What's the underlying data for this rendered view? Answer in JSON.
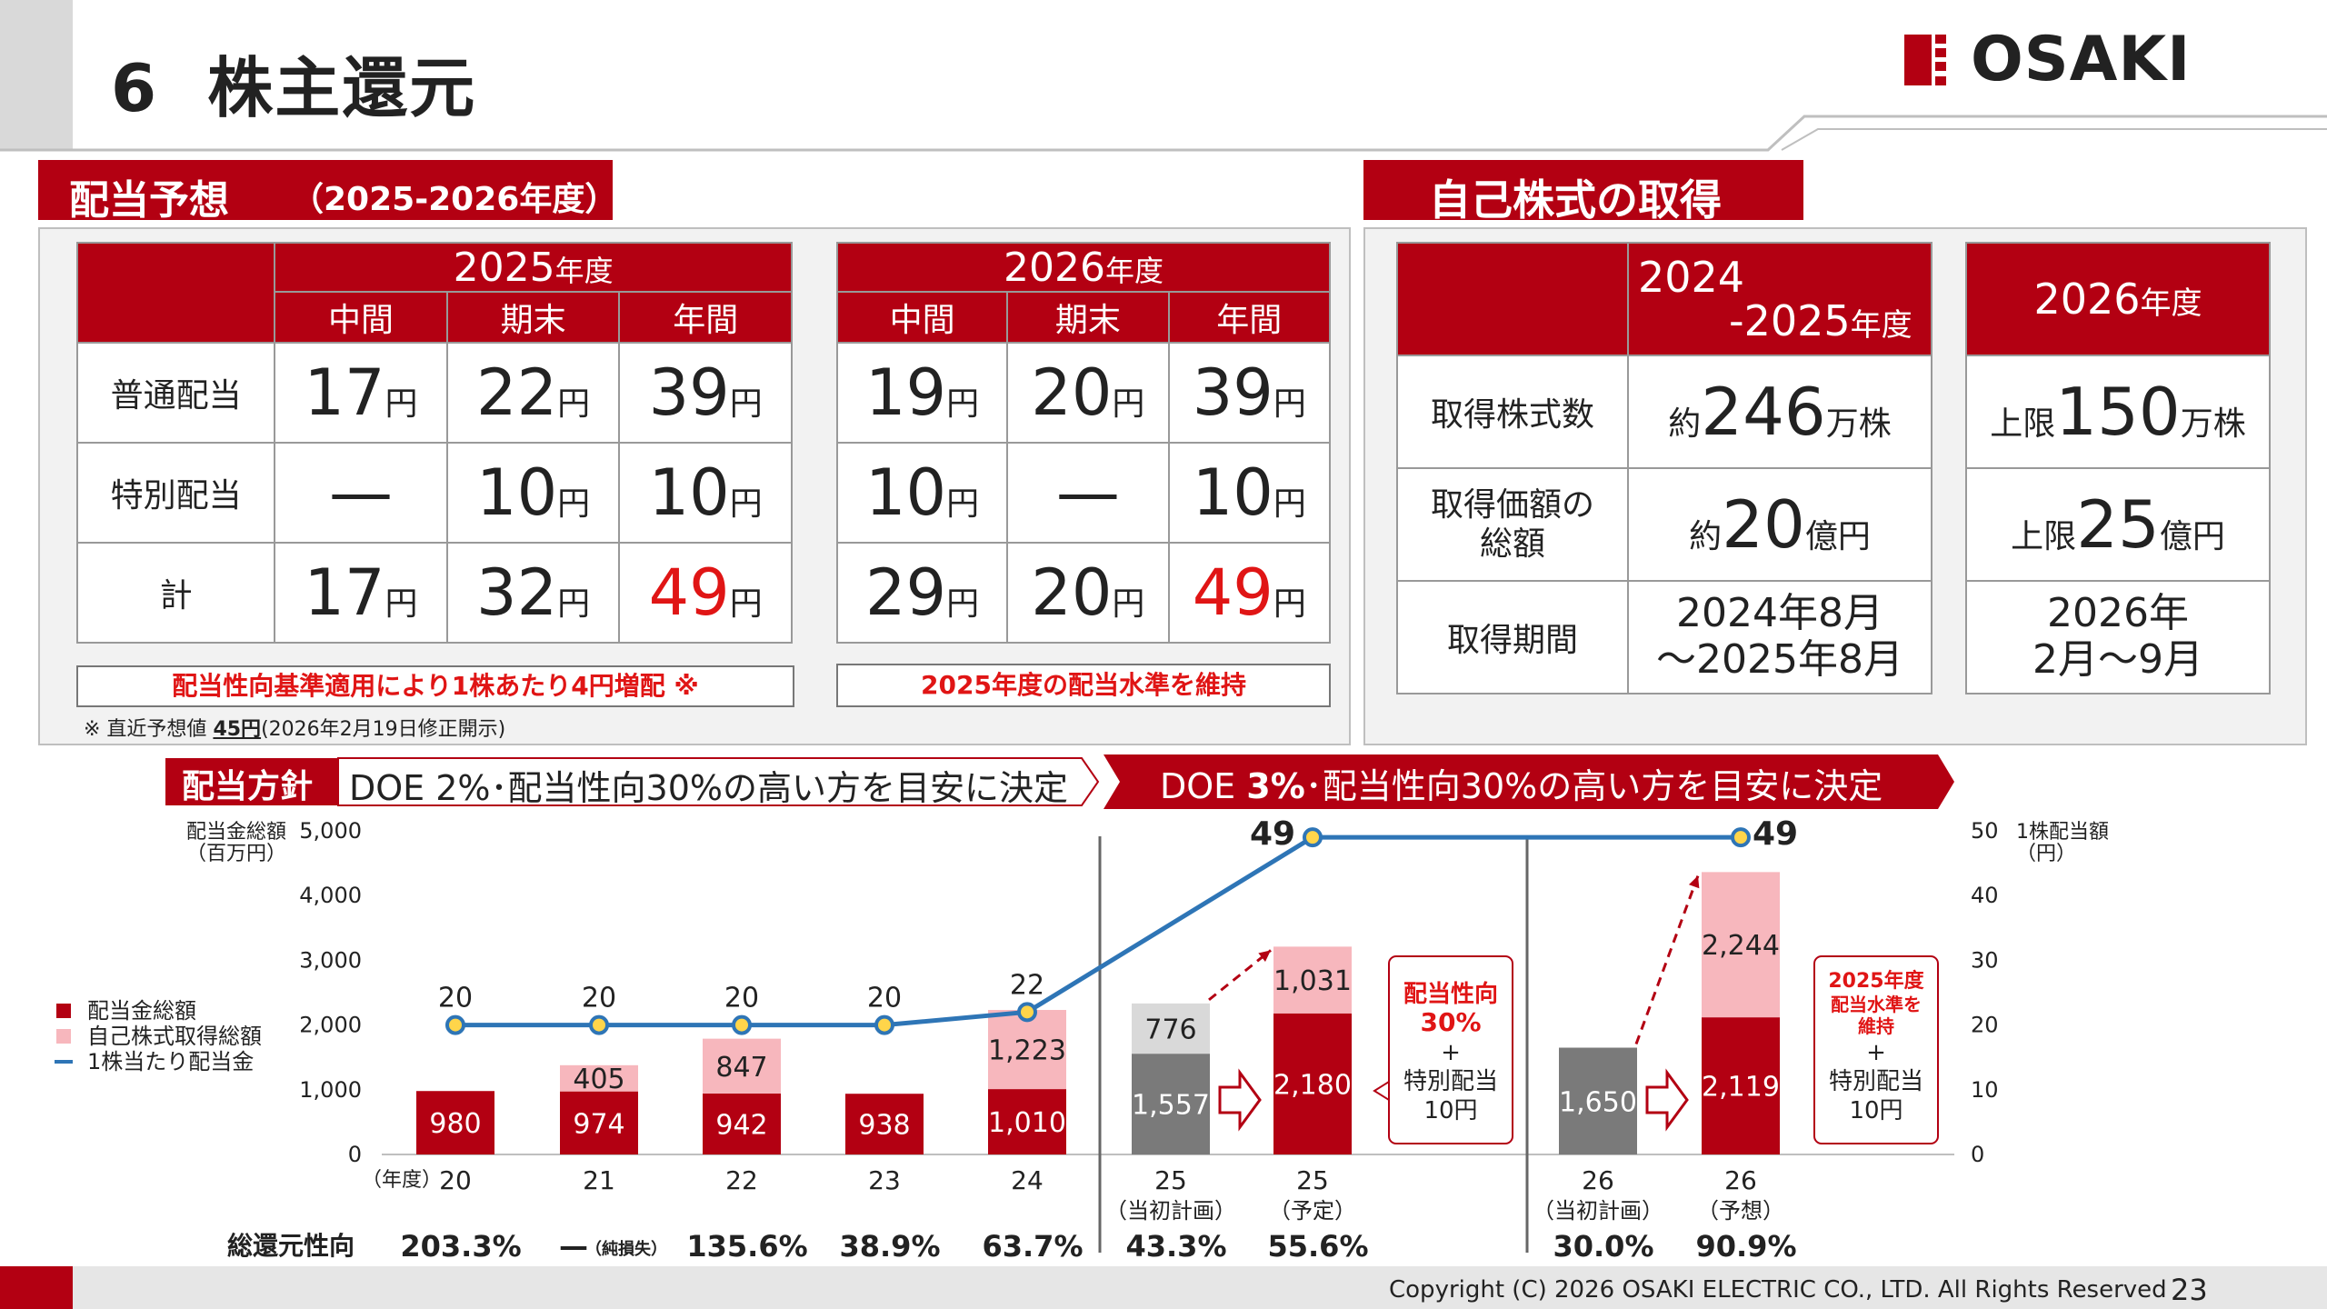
{
  "page": {
    "number": "6",
    "title": "株主還元",
    "logo": "OSAKI",
    "copyright": "Copyright (C) 2026 OSAKI ELECTRIC CO., LTD. All Rights Reserved",
    "page_number": "23"
  },
  "dividend_forecast": {
    "title": "配当予想",
    "subtitle": "（2025-2026年度）",
    "fy2025": {
      "year": "2025",
      "suffix": "年度",
      "cols": [
        "中間",
        "期末",
        "年間"
      ],
      "rows": [
        {
          "label": "普通配当",
          "values": [
            "17",
            "22",
            "39"
          ]
        },
        {
          "label": "特別配当",
          "values": [
            "—",
            "10",
            "10"
          ]
        },
        {
          "label": "計",
          "values": [
            "17",
            "32",
            "49"
          ]
        }
      ],
      "note": "配当性向基準適用により1株あたり4円増配 ※"
    },
    "fy2026": {
      "year": "2026",
      "suffix": "年度",
      "cols": [
        "中間",
        "期末",
        "年間"
      ],
      "rows": [
        {
          "label": "普通配当",
          "values": [
            "19",
            "20",
            "39"
          ]
        },
        {
          "label": "特別配当",
          "values": [
            "10",
            "—",
            "10"
          ]
        },
        {
          "label": "計",
          "values": [
            "29",
            "20",
            "49"
          ]
        }
      ],
      "note": "2025年度の配当水準を維持"
    },
    "unit": "円",
    "footnote_prefix": "※ 直近予想値",
    "footnote_value": "45円",
    "footnote_suffix": "(2026年2月19日修正開示)"
  },
  "buyback": {
    "title": "自己株式の取得",
    "col1_line1": "2024",
    "col1_line2": "-2025",
    "col1_suffix": "年度",
    "col2_year": "2026",
    "col2_suffix": "年度",
    "rows": [
      {
        "label": "取得株式数",
        "c1_pre": "約",
        "c1_num": "246",
        "c1_unit": "万株",
        "c2_pre": "上限",
        "c2_num": "150",
        "c2_unit": "万株"
      },
      {
        "label1": "取得価額の",
        "label2": "総額",
        "c1_pre": "約",
        "c1_num": "20",
        "c1_unit": "億円",
        "c2_pre": "上限",
        "c2_num": "25",
        "c2_unit": "億円"
      },
      {
        "label": "取得期間",
        "c1_l1": "2024年8月",
        "c1_l2": "～2025年8月",
        "c2_l1": "2026年",
        "c2_l2": "2月～9月"
      }
    ]
  },
  "policy": {
    "label": "配当方針",
    "policy1": "DOE 2%･配当性向30%の高い方を目安に決定",
    "policy2_pre": "DOE ",
    "policy2_bold": "3%",
    "policy2_post": "･配当性向30%の高い方を目安に決定"
  },
  "chart_data": {
    "type": "bar",
    "left_axis_label_1": "配当金総額",
    "left_axis_label_2": "（百万円）",
    "right_axis_label_1": "1株配当額",
    "right_axis_label_2": "（円）",
    "x_axis_prefix": "（年度）",
    "ylim_left": [
      0,
      5000
    ],
    "ylim_right": [
      0,
      50
    ],
    "left_ticks": [
      "0",
      "1,000",
      "2,000",
      "3,000",
      "4,000",
      "5,000"
    ],
    "right_ticks": [
      "0",
      "10",
      "20",
      "30",
      "40",
      "50"
    ],
    "categories": [
      {
        "label": "20",
        "sub": ""
      },
      {
        "label": "21",
        "sub": ""
      },
      {
        "label": "22",
        "sub": ""
      },
      {
        "label": "23",
        "sub": ""
      },
      {
        "label": "24",
        "sub": ""
      },
      {
        "label": "25",
        "sub": "（当初計画）"
      },
      {
        "label": "25",
        "sub": "（予定）"
      },
      {
        "label": "26",
        "sub": "（当初計画）"
      },
      {
        "label": "26",
        "sub": "（予想）"
      }
    ],
    "series": [
      {
        "name": "配当金総額",
        "color": "#b30012",
        "values": [
          980,
          974,
          942,
          938,
          1010,
          1557,
          2180,
          1650,
          2119
        ],
        "labels": [
          "980",
          "974",
          "942",
          "938",
          "1,010",
          "1,557",
          "2,180",
          "1,650",
          "2,119"
        ]
      },
      {
        "name": "自己株式取得総額",
        "color": "#f7b7bd",
        "values": [
          0,
          405,
          847,
          0,
          1223,
          776,
          1031,
          0,
          2244
        ],
        "labels": [
          "",
          "405",
          "847",
          "",
          "1,223",
          "776",
          "1,031",
          "",
          "2,244"
        ]
      },
      {
        "name": "1株当たり配当金",
        "color": "#2e75b6",
        "values": [
          20,
          20,
          20,
          20,
          22,
          null,
          49,
          null,
          49
        ],
        "labels": [
          "20",
          "20",
          "20",
          "20",
          "22",
          "",
          "49",
          "",
          "49"
        ]
      }
    ],
    "plan_bar_colors": {
      "dividend": "#7a7a7a",
      "buyback": "#d9d9d9"
    },
    "annotation_25": {
      "line1": "配当性向",
      "line2": "30%",
      "plus": "+",
      "line3": "特別配当",
      "line4": "10円"
    },
    "annotation_26": {
      "line1": "2025年度",
      "line2": "配当水準を",
      "line3": "維持",
      "plus": "+",
      "line4": "特別配当",
      "line5": "10円"
    },
    "total_return": {
      "label": "総還元性向",
      "values": [
        "203.3%",
        "—",
        "135.6%",
        "38.9%",
        "63.7%",
        "43.3%",
        "55.6%",
        "30.0%",
        "90.9%"
      ],
      "note_21": "（純損失）"
    }
  }
}
